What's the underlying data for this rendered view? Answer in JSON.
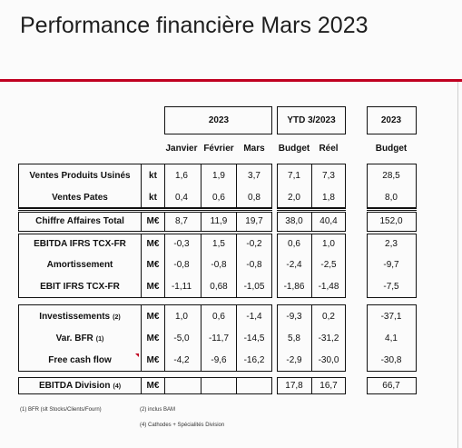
{
  "title": "Performance financière Mars 2023",
  "headers": {
    "group_2023": "2023",
    "group_ytd": "YTD 3/2023",
    "group_2023_budget": "2023",
    "cols": [
      "Janvier",
      "Février",
      "Mars",
      "Budget",
      "Réel",
      "Budget"
    ]
  },
  "rows": [
    {
      "label": "Ventes Produits Usinés",
      "unit": "kt",
      "values": [
        "1,6",
        "1,9",
        "3,7",
        "7,1",
        "7,3",
        "28,5"
      ]
    },
    {
      "label": "Ventes Pates",
      "unit": "kt",
      "values": [
        "0,4",
        "0,6",
        "0,8",
        "2,0",
        "1,8",
        "8,0"
      ]
    },
    {
      "label": "Chiffre Affaires Total",
      "unit": "M€",
      "values": [
        "8,7",
        "11,9",
        "19,7",
        "38,0",
        "40,4",
        "152,0"
      ]
    },
    {
      "label": "EBITDA IFRS TCX-FR",
      "unit": "M€",
      "values": [
        "-0,3",
        "1,5",
        "-0,2",
        "0,6",
        "1,0",
        "2,3"
      ]
    },
    {
      "label": "Amortissement",
      "unit": "M€",
      "values": [
        "-0,8",
        "-0,8",
        "-0,8",
        "-2,4",
        "-2,5",
        "-9,7"
      ]
    },
    {
      "label": "EBIT IFRS TCX-FR",
      "unit": "M€",
      "values": [
        "-1,11",
        "0,68",
        "-1,05",
        "-1,86",
        "-1,48",
        "-7,5"
      ]
    },
    {
      "label": "Investissements",
      "label_note": "(2)",
      "unit": "M€",
      "values": [
        "1,0",
        "0,6",
        "-1,4",
        "-9,3",
        "0,2",
        "-37,1"
      ]
    },
    {
      "label": "Var. BFR",
      "label_note": "(1)",
      "unit": "M€",
      "values": [
        "-5,0",
        "-11,7",
        "-14,5",
        "5,8",
        "-31,2",
        "4,1"
      ]
    },
    {
      "label": "Free cash flow",
      "unit": "M€",
      "values": [
        "-4,2",
        "-9,6",
        "-16,2",
        "-2,9",
        "-30,0",
        "-30,8"
      ]
    },
    {
      "label": "EBITDA Division",
      "label_note": "(4)",
      "unit": "M€",
      "values": [
        "",
        "",
        "",
        "17,8",
        "16,7",
        "66,7"
      ]
    }
  ],
  "footnotes": {
    "f1": "(1) BFR (slt Stocks/Clients/Fourn)",
    "f2": "(2) inclus BAM",
    "f4": "(4) Cathodes + Spécialités Division"
  }
}
